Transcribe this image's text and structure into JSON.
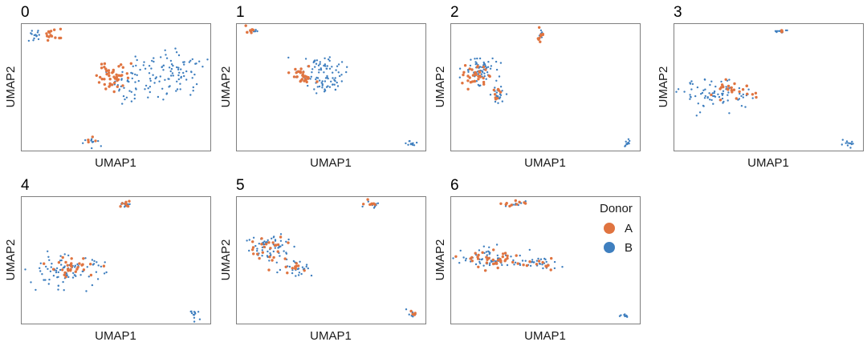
{
  "colors": {
    "A": "#e07440",
    "B": "#3f7fbf",
    "frame": "#7f7f7f"
  },
  "legend": {
    "title": "Donor",
    "items": [
      "A",
      "B"
    ],
    "placement": "right of panel 6"
  },
  "chart_data": {
    "type": "scatter",
    "xlabel": "UMAP1",
    "ylabel": "UMAP2",
    "series_names": [
      "A",
      "B"
    ],
    "note": "Each panel is a cluster id; points are cells colored by donor; UMAP coordinates normalized 0-1 within each panel (axes unlabeled, no ticks).",
    "panels": [
      {
        "label": "0",
        "clusters": [
          {
            "donor": "B",
            "cx": 0.08,
            "cy": 0.9,
            "sx": 0.03,
            "sy": 0.025,
            "n": 14
          },
          {
            "donor": "A",
            "cx": 0.17,
            "cy": 0.91,
            "sx": 0.028,
            "sy": 0.022,
            "n": 14
          },
          {
            "donor": "A",
            "cx": 0.49,
            "cy": 0.6,
            "sx": 0.045,
            "sy": 0.07,
            "n": 45
          },
          {
            "donor": "B",
            "cx": 0.55,
            "cy": 0.5,
            "sx": 0.055,
            "sy": 0.08,
            "n": 30
          },
          {
            "donor": "B",
            "cx": 0.67,
            "cy": 0.57,
            "sx": 0.05,
            "sy": 0.08,
            "n": 30
          },
          {
            "donor": "B",
            "cx": 0.83,
            "cy": 0.61,
            "sx": 0.07,
            "sy": 0.09,
            "n": 70
          },
          {
            "donor": "B",
            "cx": 0.38,
            "cy": 0.07,
            "sx": 0.03,
            "sy": 0.025,
            "n": 12
          },
          {
            "donor": "A",
            "cx": 0.37,
            "cy": 0.08,
            "sx": 0.012,
            "sy": 0.015,
            "n": 4
          }
        ]
      },
      {
        "label": "1",
        "clusters": [
          {
            "donor": "A",
            "cx": 0.07,
            "cy": 0.94,
            "sx": 0.015,
            "sy": 0.015,
            "n": 8
          },
          {
            "donor": "B",
            "cx": 0.08,
            "cy": 0.93,
            "sx": 0.018,
            "sy": 0.015,
            "n": 6
          },
          {
            "donor": "B",
            "cx": 0.44,
            "cy": 0.64,
            "sx": 0.06,
            "sy": 0.055,
            "n": 60
          },
          {
            "donor": "B",
            "cx": 0.48,
            "cy": 0.51,
            "sx": 0.04,
            "sy": 0.03,
            "n": 30
          },
          {
            "donor": "A",
            "cx": 0.35,
            "cy": 0.58,
            "sx": 0.03,
            "sy": 0.035,
            "n": 30
          },
          {
            "donor": "B",
            "cx": 0.92,
            "cy": 0.06,
            "sx": 0.015,
            "sy": 0.01,
            "n": 12
          }
        ]
      },
      {
        "label": "2",
        "clusters": [
          {
            "donor": "A",
            "cx": 0.48,
            "cy": 0.91,
            "sx": 0.012,
            "sy": 0.025,
            "n": 10
          },
          {
            "donor": "B",
            "cx": 0.48,
            "cy": 0.91,
            "sx": 0.012,
            "sy": 0.025,
            "n": 6
          },
          {
            "donor": "B",
            "cx": 0.15,
            "cy": 0.64,
            "sx": 0.04,
            "sy": 0.05,
            "n": 60
          },
          {
            "donor": "A",
            "cx": 0.13,
            "cy": 0.58,
            "sx": 0.03,
            "sy": 0.04,
            "n": 35
          },
          {
            "donor": "B",
            "cx": 0.25,
            "cy": 0.43,
            "sx": 0.018,
            "sy": 0.04,
            "n": 25
          },
          {
            "donor": "A",
            "cx": 0.24,
            "cy": 0.44,
            "sx": 0.015,
            "sy": 0.03,
            "n": 8
          },
          {
            "donor": "B",
            "cx": 0.93,
            "cy": 0.06,
            "sx": 0.012,
            "sy": 0.02,
            "n": 14
          }
        ]
      },
      {
        "label": "3",
        "clusters": [
          {
            "donor": "B",
            "cx": 0.57,
            "cy": 0.94,
            "sx": 0.022,
            "sy": 0.01,
            "n": 12
          },
          {
            "donor": "A",
            "cx": 0.57,
            "cy": 0.94,
            "sx": 0.015,
            "sy": 0.008,
            "n": 5
          },
          {
            "donor": "B",
            "cx": 0.24,
            "cy": 0.44,
            "sx": 0.1,
            "sy": 0.055,
            "n": 80
          },
          {
            "donor": "A",
            "cx": 0.31,
            "cy": 0.46,
            "sx": 0.06,
            "sy": 0.035,
            "n": 25
          },
          {
            "donor": "B",
            "cx": 0.92,
            "cy": 0.05,
            "sx": 0.018,
            "sy": 0.012,
            "n": 12
          }
        ]
      },
      {
        "label": "4",
        "clusters": [
          {
            "donor": "B",
            "cx": 0.54,
            "cy": 0.94,
            "sx": 0.02,
            "sy": 0.012,
            "n": 10
          },
          {
            "donor": "A",
            "cx": 0.54,
            "cy": 0.94,
            "sx": 0.02,
            "sy": 0.012,
            "n": 8
          },
          {
            "donor": "B",
            "cx": 0.24,
            "cy": 0.41,
            "sx": 0.1,
            "sy": 0.06,
            "n": 85
          },
          {
            "donor": "A",
            "cx": 0.29,
            "cy": 0.44,
            "sx": 0.07,
            "sy": 0.04,
            "n": 30
          },
          {
            "donor": "B",
            "cx": 0.92,
            "cy": 0.07,
            "sx": 0.013,
            "sy": 0.018,
            "n": 12
          }
        ]
      },
      {
        "label": "5",
        "clusters": [
          {
            "donor": "B",
            "cx": 0.72,
            "cy": 0.94,
            "sx": 0.022,
            "sy": 0.012,
            "n": 10
          },
          {
            "donor": "A",
            "cx": 0.72,
            "cy": 0.94,
            "sx": 0.022,
            "sy": 0.012,
            "n": 7
          },
          {
            "donor": "B",
            "cx": 0.19,
            "cy": 0.6,
            "sx": 0.07,
            "sy": 0.06,
            "n": 60
          },
          {
            "donor": "A",
            "cx": 0.17,
            "cy": 0.59,
            "sx": 0.05,
            "sy": 0.05,
            "n": 25
          },
          {
            "donor": "B",
            "cx": 0.32,
            "cy": 0.44,
            "sx": 0.04,
            "sy": 0.035,
            "n": 25
          },
          {
            "donor": "A",
            "cx": 0.31,
            "cy": 0.45,
            "sx": 0.03,
            "sy": 0.03,
            "n": 10
          },
          {
            "donor": "B",
            "cx": 0.93,
            "cy": 0.08,
            "sx": 0.015,
            "sy": 0.015,
            "n": 8
          },
          {
            "donor": "A",
            "cx": 0.93,
            "cy": 0.08,
            "sx": 0.01,
            "sy": 0.012,
            "n": 5
          }
        ]
      },
      {
        "label": "6",
        "clusters": [
          {
            "donor": "B",
            "cx": 0.35,
            "cy": 0.94,
            "sx": 0.035,
            "sy": 0.012,
            "n": 8
          },
          {
            "donor": "A",
            "cx": 0.35,
            "cy": 0.94,
            "sx": 0.035,
            "sy": 0.012,
            "n": 10
          },
          {
            "donor": "B",
            "cx": 0.22,
            "cy": 0.51,
            "sx": 0.08,
            "sy": 0.04,
            "n": 60
          },
          {
            "donor": "A",
            "cx": 0.24,
            "cy": 0.5,
            "sx": 0.07,
            "sy": 0.03,
            "n": 35
          },
          {
            "donor": "B",
            "cx": 0.46,
            "cy": 0.47,
            "sx": 0.06,
            "sy": 0.025,
            "n": 30
          },
          {
            "donor": "A",
            "cx": 0.44,
            "cy": 0.47,
            "sx": 0.05,
            "sy": 0.02,
            "n": 12
          },
          {
            "donor": "B",
            "cx": 0.92,
            "cy": 0.06,
            "sx": 0.025,
            "sy": 0.01,
            "n": 10
          }
        ]
      }
    ]
  }
}
